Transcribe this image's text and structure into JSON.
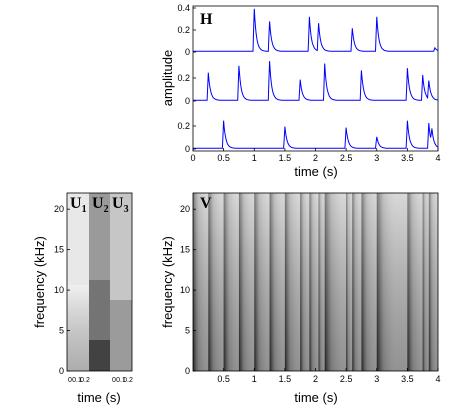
{
  "chart_data": [
    {
      "type": "line",
      "panel_label": "H",
      "xlabel": "time (s)",
      "ylabel": "amplitude",
      "xlim": [
        0,
        4
      ],
      "ylim": [
        0,
        0.4
      ],
      "x_ticks": [
        "0",
        "0.5",
        "1",
        "1.5",
        "2",
        "2.5",
        "3",
        "3.5",
        "4"
      ],
      "y_ticks": [
        "0",
        "0.2",
        "0.4"
      ],
      "line_color": "#0000ff",
      "series": [
        {
          "peaks": [
            {
              "x": 1.0,
              "y": 0.37
            },
            {
              "x": 1.25,
              "y": 0.26
            },
            {
              "x": 1.9,
              "y": 0.3
            },
            {
              "x": 2.05,
              "y": 0.24
            },
            {
              "x": 2.6,
              "y": 0.2
            },
            {
              "x": 3.0,
              "y": 0.3
            },
            {
              "x": 3.95,
              "y": 0.03
            }
          ]
        },
        {
          "peaks": [
            {
              "x": 0.25,
              "y": 0.24
            },
            {
              "x": 0.75,
              "y": 0.3
            },
            {
              "x": 1.25,
              "y": 0.34
            },
            {
              "x": 1.75,
              "y": 0.18
            },
            {
              "x": 2.15,
              "y": 0.32
            },
            {
              "x": 2.75,
              "y": 0.26
            },
            {
              "x": 3.5,
              "y": 0.28
            },
            {
              "x": 3.75,
              "y": 0.22
            },
            {
              "x": 3.85,
              "y": 0.16
            }
          ]
        },
        {
          "peaks": [
            {
              "x": 0.5,
              "y": 0.24
            },
            {
              "x": 1.5,
              "y": 0.19
            },
            {
              "x": 2.5,
              "y": 0.18
            },
            {
              "x": 3.0,
              "y": 0.1
            },
            {
              "x": 3.5,
              "y": 0.24
            },
            {
              "x": 3.85,
              "y": 0.22
            },
            {
              "x": 3.9,
              "y": 0.12
            }
          ]
        }
      ]
    },
    {
      "type": "heatmap",
      "panel_label": "U",
      "sub_labels": [
        "1",
        "2",
        "3"
      ],
      "xlabel": "time (s)",
      "ylabel": "frequency (kHz)",
      "ylim": [
        0,
        22
      ],
      "y_ticks": [
        "0",
        "5",
        "10",
        "15",
        "20"
      ],
      "x_ticks": [
        "0",
        "0.1",
        "0.2",
        "0",
        "0.1",
        "0.2"
      ],
      "colormap": "gray"
    },
    {
      "type": "heatmap",
      "panel_label": "V",
      "xlabel": "time (s)",
      "ylabel": "frequency (kHz)",
      "xlim": [
        0,
        4
      ],
      "ylim": [
        0,
        22
      ],
      "x_ticks": [
        "0.5",
        "1",
        "1.5",
        "2",
        "2.5",
        "3",
        "3.5",
        "4"
      ],
      "y_ticks": [
        "0",
        "5",
        "10",
        "15",
        "20"
      ],
      "onsets": [
        0.0,
        0.25,
        0.5,
        0.75,
        1.0,
        1.25,
        1.5,
        1.75,
        1.9,
        2.05,
        2.15,
        2.5,
        2.6,
        2.75,
        3.0,
        3.5,
        3.75,
        3.85
      ],
      "colormap": "gray"
    }
  ]
}
